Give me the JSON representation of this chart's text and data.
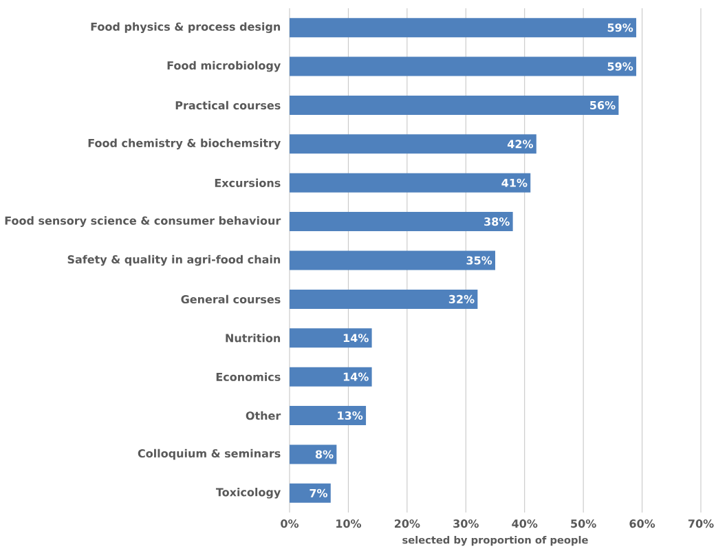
{
  "chart_data": {
    "type": "bar",
    "orientation": "horizontal",
    "xlabel": "selected by proportion of people",
    "categories": [
      "Food physics & process design",
      "Food microbiology",
      "Practical courses",
      "Food chemistry & biochemsitry",
      "Excursions",
      "Food sensory science & consumer behaviour",
      "Safety & quality in agri-food chain",
      "General courses",
      "Nutrition",
      "Economics",
      "Other",
      "Colloquium & seminars",
      "Toxicology"
    ],
    "values": [
      59,
      59,
      56,
      42,
      41,
      38,
      35,
      32,
      14,
      14,
      13,
      8,
      7
    ],
    "value_labels": [
      "59%",
      "59%",
      "56%",
      "42%",
      "41%",
      "38%",
      "35%",
      "32%",
      "14%",
      "14%",
      "13%",
      "8%",
      "7%"
    ],
    "color": "#4f81bd",
    "xlim": [
      0,
      70
    ],
    "xticks": [
      {
        "value": 0,
        "label": "0%"
      },
      {
        "value": 10,
        "label": "10%"
      },
      {
        "value": 20,
        "label": "20%"
      },
      {
        "value": 30,
        "label": "30%"
      },
      {
        "value": 40,
        "label": "40%"
      },
      {
        "value": 50,
        "label": "50%"
      },
      {
        "value": 60,
        "label": "60%"
      },
      {
        "value": 70,
        "label": "70%"
      }
    ],
    "grid": "x"
  }
}
